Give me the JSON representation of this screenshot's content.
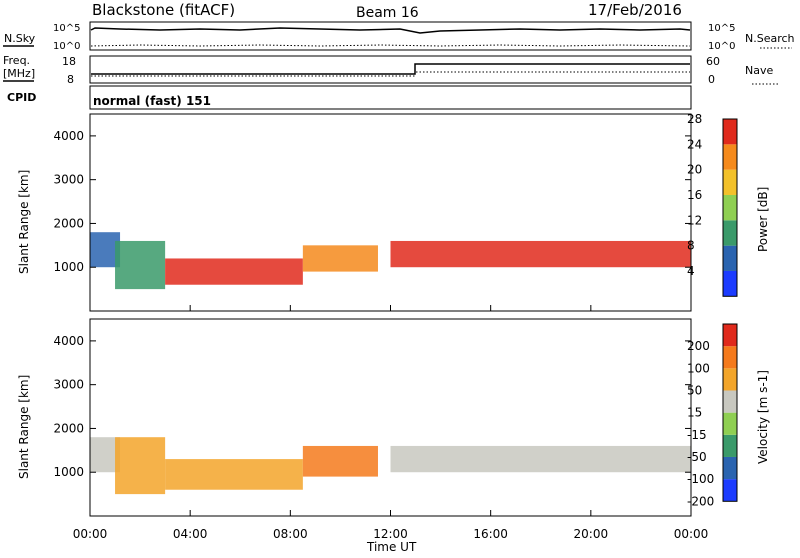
{
  "header": {
    "site": "Blackstone (fitACF)",
    "beam": "Beam 16",
    "date": "17/Feb/2016"
  },
  "noise_panel": {
    "left_label": "N.Sky",
    "right_label": "N.Search",
    "tick_top": "10^5",
    "tick_bottom": "10^0"
  },
  "freq_panel": {
    "left_label_line1": "Freq.",
    "left_label_line2": "[MHz]",
    "right_label": "Nave",
    "left_ticks": [
      "18",
      "8"
    ],
    "right_ticks": [
      "60",
      "0"
    ]
  },
  "cpid_panel": {
    "label": "CPID",
    "value": "normal (fast) 151"
  },
  "chart_data": [
    {
      "type": "heatmap",
      "name": "power",
      "ylabel": "Slant Range [km]",
      "ylim": [
        0,
        4500
      ],
      "yticks": [
        1000,
        2000,
        3000,
        4000
      ],
      "colorbar": {
        "label": "Power [dB]",
        "ticks": [
          4,
          8,
          12,
          16,
          20,
          24,
          28
        ],
        "colors": [
          "#1c3cff",
          "#2a64b0",
          "#3a9a6a",
          "#8fcf52",
          "#f3c12a",
          "#f58a1c",
          "#e02a1c"
        ]
      },
      "bands": [
        {
          "t": [
            0.0,
            1.2
          ],
          "r": [
            1000,
            1800
          ],
          "color": "#2a64b0"
        },
        {
          "t": [
            1.0,
            3.0
          ],
          "r": [
            500,
            1600
          ],
          "color": "#3a9a6a"
        },
        {
          "t": [
            3.0,
            8.5
          ],
          "r": [
            600,
            1200
          ],
          "color": "#e02a1c"
        },
        {
          "t": [
            8.5,
            11.5
          ],
          "r": [
            900,
            1500
          ],
          "color": "#f58a1c"
        },
        {
          "t": [
            12.0,
            24.0
          ],
          "r": [
            1000,
            1600
          ],
          "color": "#e02a1c"
        }
      ]
    },
    {
      "type": "heatmap",
      "name": "velocity",
      "ylabel": "Slant Range [km]",
      "ylim": [
        0,
        4500
      ],
      "yticks": [
        1000,
        2000,
        3000,
        4000
      ],
      "colorbar": {
        "label": "Velocity [m s-1]",
        "ticks": [
          "200",
          "100",
          "50",
          "15",
          "-15",
          "-50",
          "-100",
          "-200"
        ],
        "colors": [
          "#1c3cff",
          "#2a64b0",
          "#3a9a6a",
          "#8fcf52",
          "#c8c8c0",
          "#f3a52a",
          "#f57a1c",
          "#e02a1c"
        ]
      },
      "bands": [
        {
          "t": [
            0.0,
            1.2
          ],
          "r": [
            1000,
            1800
          ],
          "color": "#c8c8c0"
        },
        {
          "t": [
            1.0,
            3.0
          ],
          "r": [
            500,
            1800
          ],
          "color": "#f3a52a"
        },
        {
          "t": [
            3.0,
            8.5
          ],
          "r": [
            600,
            1300
          ],
          "color": "#f3a52a"
        },
        {
          "t": [
            8.5,
            11.5
          ],
          "r": [
            900,
            1600
          ],
          "color": "#f57a1c"
        },
        {
          "t": [
            12.0,
            24.0
          ],
          "r": [
            1000,
            1600
          ],
          "color": "#c8c8c0"
        }
      ]
    }
  ],
  "x_axis": {
    "label": "Time UT",
    "ticks": [
      "00:00",
      "04:00",
      "08:00",
      "12:00",
      "16:00",
      "20:00",
      "00:00"
    ]
  }
}
